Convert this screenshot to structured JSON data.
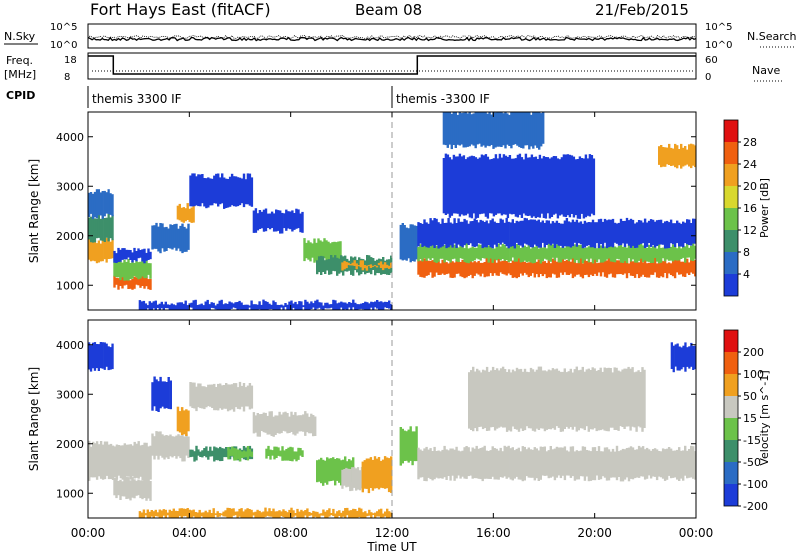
{
  "header": {
    "station": "Fort Hays East (fitACF)",
    "beam": "Beam 08",
    "date": "21/Feb/2015"
  },
  "top_panels": {
    "nsky_label": "N.Sky",
    "nsearch_label": "N.Search",
    "nsky_ticks": [
      "10^5",
      "10^0"
    ],
    "nsearch_ticks": [
      "10^5",
      "10^0"
    ],
    "freq_label_1": "Freq.",
    "freq_label_2": "[MHz]",
    "freq_ticks": [
      "18",
      "8"
    ],
    "nave_label": "Nave",
    "nave_ticks": [
      "60",
      "0"
    ],
    "cpid_label": "CPID",
    "cpid_segments": [
      {
        "label": "themis 3300 IF",
        "start": 0.0
      },
      {
        "label": "themis -3300 IF",
        "start": 12.0
      }
    ],
    "freq_steps": [
      {
        "x0": 0.0,
        "x1": 1.0,
        "level": 18
      },
      {
        "x0": 1.0,
        "x1": 13.0,
        "level": 10
      },
      {
        "x0": 13.0,
        "x1": 24.0,
        "level": 18
      }
    ]
  },
  "x_axis": {
    "label": "Time UT",
    "ticks": [
      "00:00",
      "04:00",
      "08:00",
      "12:00",
      "16:00",
      "20:00",
      "00:00"
    ],
    "tick_values": [
      0,
      4,
      8,
      12,
      16,
      20,
      24
    ],
    "range": [
      0,
      24
    ]
  },
  "chart_data": [
    {
      "type": "heatmap",
      "name": "power",
      "ylabel": "Slant Range [km]",
      "yticks": [
        "1000",
        "2000",
        "3000",
        "4000"
      ],
      "ytick_values": [
        1000,
        2000,
        3000,
        4000
      ],
      "ylim": [
        500,
        4500
      ],
      "colorbar_label": "Power [dB]",
      "colorbar_ticks": [
        "4",
        "8",
        "12",
        "16",
        "20",
        "24",
        "28"
      ],
      "colorbar_colors": [
        "#1c3cd8",
        "#2b6cc4",
        "#3d8f6a",
        "#6cc24a",
        "#d8d82e",
        "#f0a020",
        "#f06010",
        "#e01010"
      ],
      "bands": [
        {
          "t": [
            0.0,
            1.0
          ],
          "r": [
            1500,
            1900
          ],
          "color": "#f0a020"
        },
        {
          "t": [
            0.0,
            1.0
          ],
          "r": [
            1900,
            2400
          ],
          "color": "#3d8f6a"
        },
        {
          "t": [
            0.0,
            1.0
          ],
          "r": [
            2400,
            2900
          ],
          "color": "#2b6cc4"
        },
        {
          "t": [
            1.0,
            2.5
          ],
          "r": [
            950,
            1150
          ],
          "color": "#f06010"
        },
        {
          "t": [
            1.0,
            2.5
          ],
          "r": [
            1150,
            1500
          ],
          "color": "#6cc24a"
        },
        {
          "t": [
            1.0,
            2.5
          ],
          "r": [
            1500,
            1700
          ],
          "color": "#1c3cd8"
        },
        {
          "t": [
            2.5,
            4.0
          ],
          "r": [
            1700,
            2200
          ],
          "color": "#2b6cc4"
        },
        {
          "t": [
            3.5,
            4.2
          ],
          "r": [
            2300,
            2600
          ],
          "color": "#f0a020"
        },
        {
          "t": [
            4.0,
            6.5
          ],
          "r": [
            2600,
            3200
          ],
          "color": "#1c3cd8"
        },
        {
          "t": [
            6.5,
            8.5
          ],
          "r": [
            2100,
            2500
          ],
          "color": "#1c3cd8"
        },
        {
          "t": [
            8.5,
            10.0
          ],
          "r": [
            1500,
            1900
          ],
          "color": "#6cc24a"
        },
        {
          "t": [
            9.0,
            12.0
          ],
          "r": [
            1250,
            1550
          ],
          "color": "#3d8f6a"
        },
        {
          "t": [
            10.0,
            12.0
          ],
          "r": [
            1350,
            1450
          ],
          "color": "#f0a020"
        },
        {
          "t": [
            12.3,
            13.0
          ],
          "r": [
            1500,
            2200
          ],
          "color": "#2b6cc4"
        },
        {
          "t": [
            13.0,
            24.0
          ],
          "r": [
            1200,
            1500
          ],
          "color": "#f06010"
        },
        {
          "t": [
            13.0,
            24.0
          ],
          "r": [
            1500,
            1800
          ],
          "color": "#6cc24a"
        },
        {
          "t": [
            13.0,
            24.0
          ],
          "r": [
            1800,
            2300
          ],
          "color": "#1c3cd8"
        },
        {
          "t": [
            14.0,
            20.0
          ],
          "r": [
            2400,
            3600
          ],
          "color": "#1c3cd8"
        },
        {
          "t": [
            14.0,
            18.0
          ],
          "r": [
            3800,
            4500
          ],
          "color": "#2b6cc4"
        },
        {
          "t": [
            22.5,
            24.0
          ],
          "r": [
            3400,
            3800
          ],
          "color": "#f0a020"
        },
        {
          "t": [
            2.0,
            12.0
          ],
          "r": [
            500,
            650
          ],
          "color": "#1c3cd8"
        }
      ]
    },
    {
      "type": "heatmap",
      "name": "velocity",
      "ylabel": "Slant Range [km]",
      "yticks": [
        "1000",
        "2000",
        "3000",
        "4000"
      ],
      "ytick_values": [
        1000,
        2000,
        3000,
        4000
      ],
      "ylim": [
        500,
        4500
      ],
      "colorbar_label": "Velocity [m s^-1]",
      "colorbar_ticks": [
        "200",
        "100",
        "50",
        "15",
        "-15",
        "-50",
        "-100",
        "-200"
      ],
      "colorbar_colors": [
        "#1c3cd8",
        "#2b6cc4",
        "#3d8f6a",
        "#6cc24a",
        "#c8c8c0",
        "#f0a020",
        "#f06010",
        "#e01010"
      ],
      "bands": [
        {
          "t": [
            0.0,
            1.0
          ],
          "r": [
            3500,
            4000
          ],
          "color": "#1c3cd8"
        },
        {
          "t": [
            0.0,
            2.5
          ],
          "r": [
            1300,
            2000
          ],
          "color": "#c8c8c0"
        },
        {
          "t": [
            1.0,
            2.5
          ],
          "r": [
            900,
            1300
          ],
          "color": "#c8c8c0"
        },
        {
          "t": [
            2.5,
            3.3
          ],
          "r": [
            2700,
            3300
          ],
          "color": "#1c3cd8"
        },
        {
          "t": [
            2.5,
            4.0
          ],
          "r": [
            1700,
            2200
          ],
          "color": "#c8c8c0"
        },
        {
          "t": [
            3.5,
            4.0
          ],
          "r": [
            2200,
            2700
          ],
          "color": "#f0a020"
        },
        {
          "t": [
            4.0,
            6.5
          ],
          "r": [
            2700,
            3200
          ],
          "color": "#c8c8c0"
        },
        {
          "t": [
            4.0,
            6.5
          ],
          "r": [
            1700,
            1900
          ],
          "color": "#3d8f6a"
        },
        {
          "t": [
            5.5,
            6.5
          ],
          "r": [
            1700,
            1900
          ],
          "color": "#6cc24a"
        },
        {
          "t": [
            7.0,
            8.5
          ],
          "r": [
            1700,
            1900
          ],
          "color": "#6cc24a"
        },
        {
          "t": [
            6.5,
            9.0
          ],
          "r": [
            2200,
            2600
          ],
          "color": "#c8c8c0"
        },
        {
          "t": [
            9.0,
            10.5
          ],
          "r": [
            1200,
            1700
          ],
          "color": "#6cc24a"
        },
        {
          "t": [
            10.0,
            11.0
          ],
          "r": [
            1100,
            1500
          ],
          "color": "#c8c8c0"
        },
        {
          "t": [
            10.8,
            12.0
          ],
          "r": [
            1050,
            1700
          ],
          "color": "#f0a020"
        },
        {
          "t": [
            12.3,
            13.0
          ],
          "r": [
            1600,
            2300
          ],
          "color": "#6cc24a"
        },
        {
          "t": [
            13.0,
            24.0
          ],
          "r": [
            1300,
            1900
          ],
          "color": "#c8c8c0"
        },
        {
          "t": [
            15.0,
            22.0
          ],
          "r": [
            2300,
            3500
          ],
          "color": "#c8c8c0"
        },
        {
          "t": [
            23.0,
            24.0
          ],
          "r": [
            3500,
            4000
          ],
          "color": "#1c3cd8"
        },
        {
          "t": [
            2.0,
            12.0
          ],
          "r": [
            500,
            650
          ],
          "color": "#f0a020"
        }
      ]
    }
  ]
}
